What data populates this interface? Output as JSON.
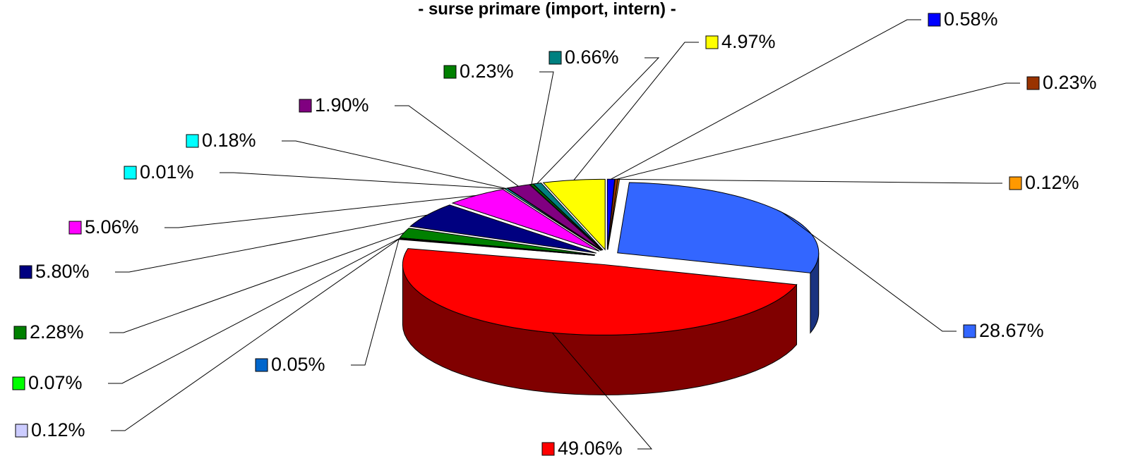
{
  "chart_data": {
    "type": "pie3d",
    "title": "- surse primare (import, intern) -",
    "categories": [
      null,
      null,
      null,
      null,
      null,
      null,
      null,
      null,
      null,
      null,
      null,
      null,
      null,
      null,
      null,
      null,
      null
    ],
    "values": [
      0.58,
      0.23,
      0.12,
      28.67,
      49.06,
      0.05,
      0.12,
      0.07,
      2.28,
      5.8,
      5.06,
      0.01,
      0.18,
      1.9,
      0.23,
      0.66,
      4.97
    ],
    "value_labels": [
      "0.58%",
      "0.23%",
      "0.12%",
      "28.67%",
      "49.06%",
      "0.05%",
      "0.12%",
      "0.07%",
      "2.28%",
      "5.80%",
      "5.06%",
      "0.01%",
      "0.18%",
      "1.90%",
      "0.23%",
      "0.66%",
      "4.97%"
    ],
    "colors": [
      "#0000ff",
      "#993300",
      "#ff9900",
      "#3366ff",
      "#ff0000",
      "#0066cc",
      "#ccccff",
      "#00ff00",
      "#008000",
      "#000080",
      "#ff00ff",
      "#00ffff",
      "#00ffff",
      "#800080",
      "#008000",
      "#008080",
      "#ffff00"
    ]
  }
}
